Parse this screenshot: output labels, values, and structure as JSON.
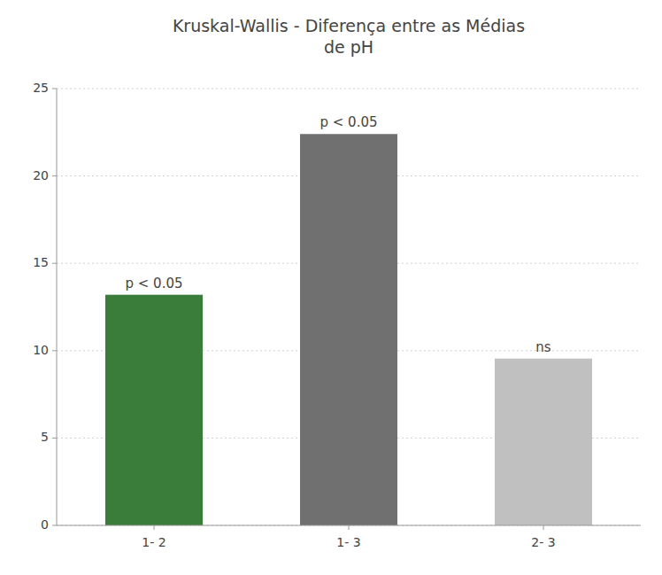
{
  "chart_data": {
    "type": "bar",
    "title": "Kruskal-Wallis - Diferença entre as Médias\nde pH",
    "categories": [
      "1- 2",
      "1- 3",
      "2- 3"
    ],
    "values": [
      13.2,
      22.4,
      9.55
    ],
    "colors": [
      "#3a7d3a",
      "#707070",
      "#c0c0c0"
    ],
    "annotations": [
      "p < 0.05",
      "p < 0.05",
      "ns"
    ],
    "ylim": [
      0,
      25
    ],
    "yticks": [
      0,
      5,
      10,
      15,
      20,
      25
    ],
    "grid": true
  }
}
